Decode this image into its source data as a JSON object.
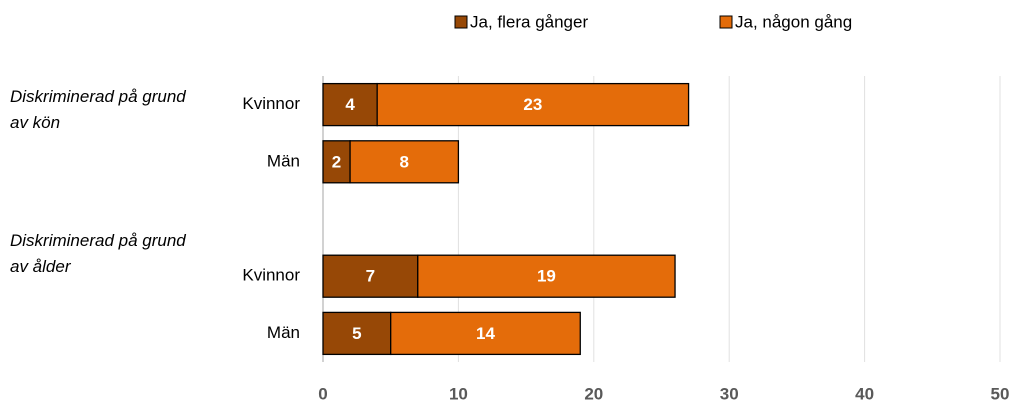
{
  "chart_data": {
    "type": "stacked_barh",
    "categories": [
      "Kvinnor",
      "Män",
      null,
      "Kvinnor",
      "Män"
    ],
    "groups": [
      "Diskriminerad på grund av kön",
      "Diskriminerad på grund av ålder"
    ],
    "series": [
      {
        "name": "Ja, flera gånger",
        "color": "#974806",
        "values": [
          4,
          2,
          null,
          7,
          5
        ]
      },
      {
        "name": "Ja, någon gång",
        "color": "#e46c0a",
        "values": [
          23,
          8,
          null,
          19,
          14
        ]
      }
    ],
    "xlim": [
      0,
      50
    ],
    "xticks": [
      0,
      10,
      20,
      30,
      40,
      50
    ],
    "grid": true,
    "legend": "top"
  }
}
